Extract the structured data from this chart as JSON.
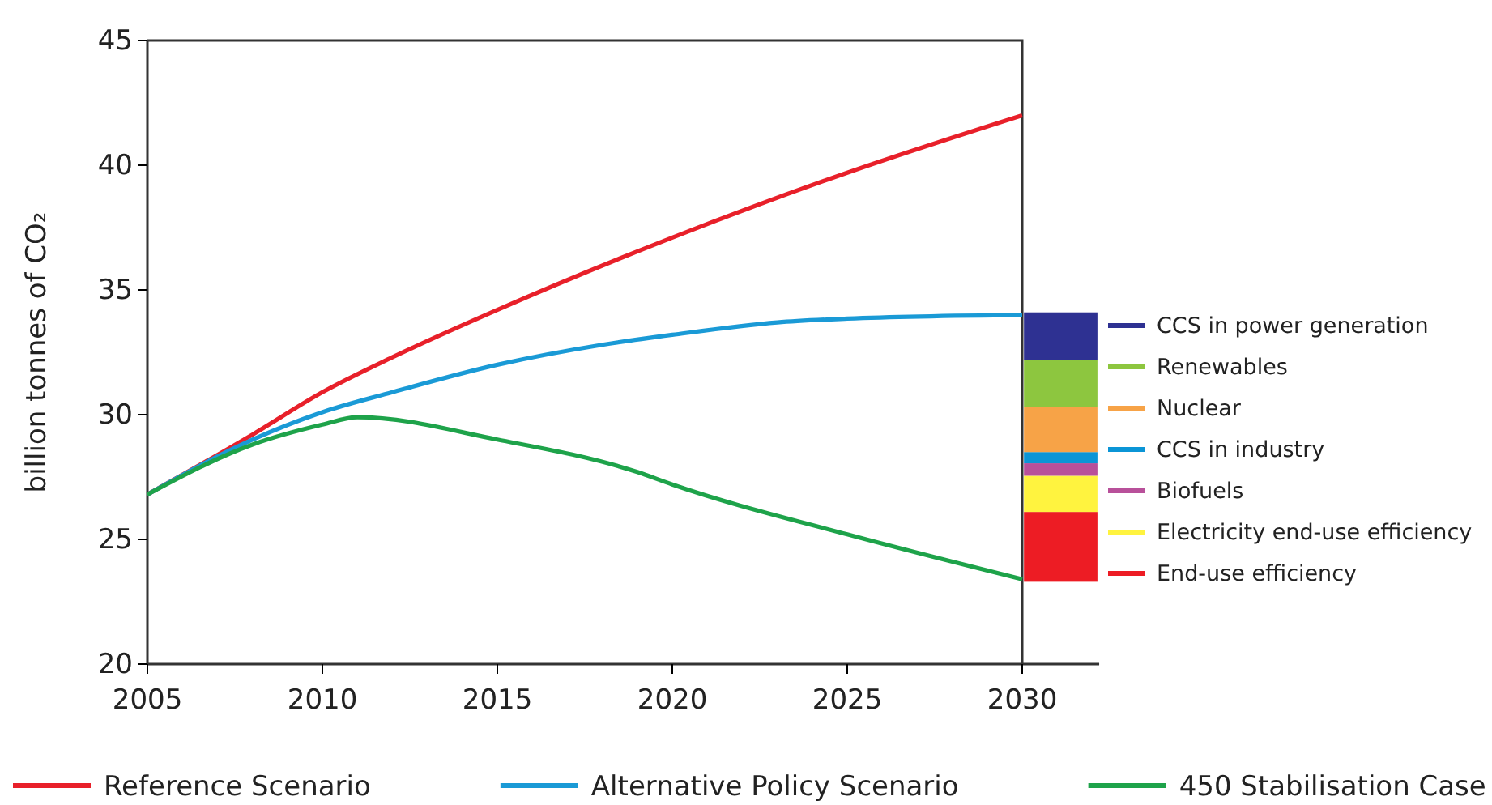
{
  "chart_data": {
    "type": "line",
    "ylabel": "billion tonnes of CO₂",
    "xlim": [
      2005,
      2032.2
    ],
    "ylim": [
      20,
      45
    ],
    "xticks": [
      2005,
      2010,
      2015,
      2020,
      2025,
      2030
    ],
    "yticks": [
      20,
      25,
      30,
      35,
      40,
      45
    ],
    "grid": false,
    "legend": "bottom",
    "series": [
      {
        "name": "Reference Scenario",
        "color": "#e8202a",
        "x": [
          2005,
          2008,
          2010,
          2012,
          2015,
          2020,
          2025,
          2030
        ],
        "values": [
          26.8,
          29.2,
          30.9,
          32.3,
          34.2,
          37.1,
          39.7,
          42.0
        ]
      },
      {
        "name": "Alternative Policy Scenario",
        "color": "#1a9ad6",
        "x": [
          2005,
          2008,
          2010,
          2012,
          2015,
          2018,
          2020,
          2023,
          2025,
          2030
        ],
        "values": [
          26.8,
          29.0,
          30.1,
          30.9,
          32.0,
          32.8,
          33.2,
          33.7,
          33.85,
          34.0
        ]
      },
      {
        "name": "450 Stabilisation Case",
        "color": "#1ea34a",
        "x": [
          2005,
          2008,
          2010,
          2011,
          2015,
          2019,
          2020,
          2025,
          2030
        ],
        "values": [
          26.8,
          28.8,
          29.6,
          29.9,
          29.0,
          27.7,
          27.2,
          25.2,
          23.4
        ]
      },
      {
        "type": "bar",
        "name": "End-use efficiency",
        "color": "#ed1c24",
        "x": [
          2031.1
        ],
        "base": [
          23.3
        ],
        "values": [
          2.8
        ]
      },
      {
        "type": "bar",
        "name": "Electricity end-use efficiency",
        "color": "#fff33f",
        "x": [
          2031.1
        ],
        "base": [
          26.1
        ],
        "values": [
          1.45
        ]
      },
      {
        "type": "bar",
        "name": "Biofuels",
        "color": "#b8509a",
        "x": [
          2031.1
        ],
        "base": [
          27.55
        ],
        "values": [
          0.5
        ]
      },
      {
        "type": "bar",
        "name": "CCS in industry",
        "color": "#0b95d6",
        "x": [
          2031.1
        ],
        "base": [
          28.05
        ],
        "values": [
          0.45
        ]
      },
      {
        "type": "bar",
        "name": "Nuclear",
        "color": "#f7a347",
        "x": [
          2031.1
        ],
        "base": [
          28.5
        ],
        "values": [
          1.8
        ]
      },
      {
        "type": "bar",
        "name": "Renewables",
        "color": "#8dc63f",
        "x": [
          2031.1
        ],
        "base": [
          30.3
        ],
        "values": [
          1.9
        ]
      },
      {
        "type": "bar",
        "name": "CCS in power generation",
        "color": "#2e3192",
        "x": [
          2031.1
        ],
        "base": [
          32.2
        ],
        "values": [
          1.9
        ]
      }
    ]
  }
}
